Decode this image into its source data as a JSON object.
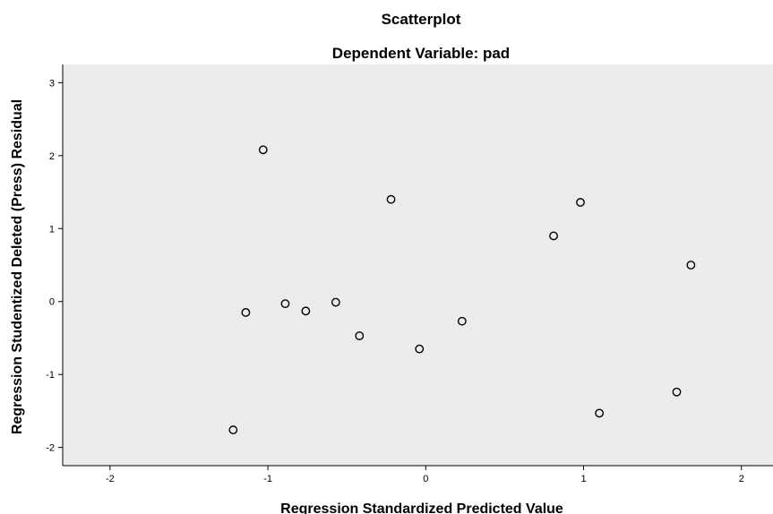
{
  "chart_data": {
    "type": "scatter",
    "title": "Scatterplot",
    "subtitle": "Dependent Variable: pad",
    "xlabel": "Regression Standardized Predicted Value",
    "ylabel": "Regression Studentized Deleted (Press) Residual",
    "xlim": [
      -2.3,
      2.2
    ],
    "ylim": [
      -2.25,
      3.25
    ],
    "xticks": [
      -2,
      -1,
      0,
      1,
      2
    ],
    "yticks": [
      -2,
      -1,
      0,
      1,
      2,
      3
    ],
    "xtick_labels": [
      "-2",
      "-1",
      "0",
      "1",
      "2"
    ],
    "ytick_labels": [
      "-2",
      "-1",
      "0",
      "1",
      "2",
      "3"
    ],
    "grid": false,
    "plot_background": "#ececec",
    "marker_color": "#000000",
    "points": [
      {
        "x": -1.03,
        "y": 2.08
      },
      {
        "x": -0.22,
        "y": 1.4
      },
      {
        "x": 0.98,
        "y": 1.36
      },
      {
        "x": 0.81,
        "y": 0.9
      },
      {
        "x": 1.68,
        "y": 0.5
      },
      {
        "x": -1.14,
        "y": -0.15
      },
      {
        "x": -0.89,
        "y": -0.03
      },
      {
        "x": -0.76,
        "y": -0.13
      },
      {
        "x": -0.57,
        "y": -0.01
      },
      {
        "x": -0.42,
        "y": -0.47
      },
      {
        "x": -0.04,
        "y": -0.65
      },
      {
        "x": 0.23,
        "y": -0.27
      },
      {
        "x": 1.1,
        "y": -1.53
      },
      {
        "x": 1.59,
        "y": -1.24
      },
      {
        "x": -1.22,
        "y": -1.76
      }
    ]
  }
}
